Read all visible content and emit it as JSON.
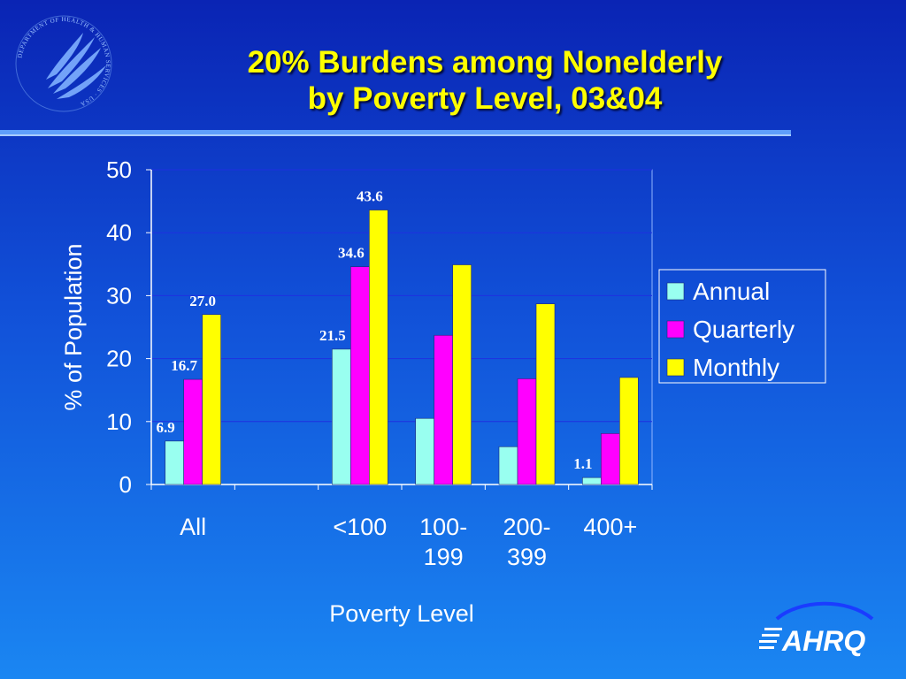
{
  "slide": {
    "title_line1": "20% Burdens among Nonelderly",
    "title_line2": "by Poverty Level, 03&04",
    "hhs_seal_text": "DEPARTMENT OF HEALTH & HUMAN SERVICES · USA",
    "ahrq_logo_text": "AHRQ"
  },
  "chart_data": {
    "type": "bar",
    "categories": [
      "All",
      "",
      "<100",
      "100-\n199",
      "200-\n399",
      "400+"
    ],
    "series": [
      {
        "name": "Annual",
        "color": "#99fff0",
        "values": [
          6.9,
          null,
          21.5,
          10.5,
          6.0,
          1.1
        ]
      },
      {
        "name": "Quarterly",
        "color": "#ff00ff",
        "values": [
          16.7,
          null,
          34.6,
          23.7,
          16.8,
          8.1
        ]
      },
      {
        "name": "Monthly",
        "color": "#ffff00",
        "values": [
          27.0,
          null,
          43.6,
          34.9,
          28.7,
          17.0
        ]
      }
    ],
    "data_labels": [
      {
        "series": 0,
        "category": 0,
        "text": "6.9"
      },
      {
        "series": 1,
        "category": 0,
        "text": "16.7"
      },
      {
        "series": 2,
        "category": 0,
        "text": "27.0"
      },
      {
        "series": 0,
        "category": 2,
        "text": "21.5"
      },
      {
        "series": 1,
        "category": 2,
        "text": "34.6"
      },
      {
        "series": 2,
        "category": 2,
        "text": "43.6"
      },
      {
        "series": 0,
        "category": 5,
        "text": "1.1"
      }
    ],
    "xlabel": "Poverty Level",
    "ylabel": "% of Population",
    "ylim": [
      0,
      50
    ],
    "yticks": [
      0,
      10,
      20,
      30,
      40,
      50
    ],
    "grid": true,
    "legend_position": "right",
    "colors": {
      "grid": "#1f30e0",
      "axis": "#ffffff",
      "data_label": "#ffffff"
    }
  }
}
